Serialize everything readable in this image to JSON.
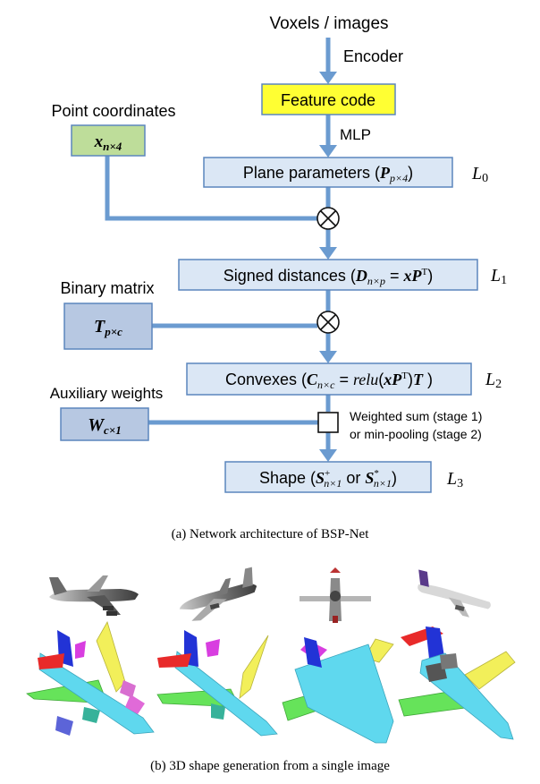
{
  "arch": {
    "input_label": "Voxels / images",
    "encoder_label": "Encoder",
    "feature_code": "Feature code",
    "mlp_label": "MLP",
    "plane_params": "Plane parameters (",
    "plane_params_sym": "P",
    "plane_params_sub": "p×4",
    "plane_params_end": ")",
    "L0": "L",
    "L0_sub": "0",
    "point_coords_label": "Point coordinates",
    "point_sym": "x",
    "point_sub": "n×4",
    "signed_dist": "Signed distances (",
    "signed_sym": "D",
    "signed_sub": "n×p",
    "signed_eq": " = ",
    "signed_x": "x",
    "signed_P": "P",
    "signed_T": "T",
    "signed_end": ")",
    "L1": "L",
    "L1_sub": "1",
    "binary_label": "Binary matrix",
    "binary_sym": "T",
    "binary_sub": "p×c",
    "convex": "Convexes (",
    "convex_sym": "C",
    "convex_sub": "n×c",
    "convex_eq": " = ",
    "convex_relu": "relu",
    "convex_open": "(",
    "convex_x": "x",
    "convex_P": "P",
    "convex_T": "T",
    "convex_close": ")",
    "convex_T2": "T",
    "convex_end": " )",
    "L2": "L",
    "L2_sub": "2",
    "aux_label": "Auxiliary weights",
    "aux_sym": "W",
    "aux_sub": "c×1",
    "weighted_1": "Weighted sum (stage 1)",
    "weighted_2": "or min-pooling (stage 2)",
    "shape": "Shape (",
    "shape_S1": "S",
    "shape_S1_sup": "+",
    "shape_S1_sub": "n×1",
    "shape_or": " or ",
    "shape_S2": "S",
    "shape_S2_sup": "*",
    "shape_S2_sub": "n×1",
    "shape_end": ")",
    "L3": "L",
    "L3_sub": "3"
  },
  "captions": {
    "a": "(a)  Network architecture of BSP-Net",
    "b": "(b)  3D shape generation from a single image"
  },
  "colors": {
    "arrow": "#6b9bd0",
    "box_fill": "#dbe7f5",
    "box_stroke": "#5b86bd",
    "input_fill": "#b7c8e2",
    "feature_fill": "#ffff33",
    "point_fill": "#bedd9a",
    "body": "#5fd8ee",
    "wing_green": "#66e35a",
    "wing_yellow": "#f2ef5a",
    "tail_blue": "#2233d6",
    "tail_red": "#e82a2a",
    "magenta": "#d83ee0"
  }
}
